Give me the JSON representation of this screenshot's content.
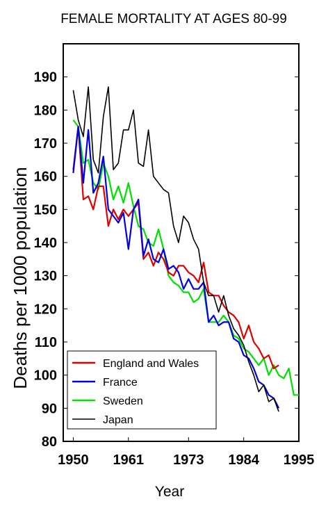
{
  "chart_data": {
    "type": "line",
    "title": "FEMALE MORTALITY AT AGES 80-99",
    "xlabel": "Year",
    "ylabel": "Deaths per 1000 population",
    "xlim": [
      1948,
      1995
    ],
    "ylim": [
      80,
      200
    ],
    "x_ticks": [
      1950,
      1961,
      1973,
      1984,
      1995
    ],
    "y_ticks": [
      80,
      90,
      100,
      110,
      120,
      130,
      140,
      150,
      160,
      170,
      180,
      190
    ],
    "grid": false,
    "legend_position": "bottom-left",
    "series": [
      {
        "name": "England and Wales",
        "color": "#e00000",
        "x": [
          1950,
          1951,
          1952,
          1953,
          1954,
          1955,
          1956,
          1957,
          1958,
          1959,
          1960,
          1961,
          1962,
          1963,
          1964,
          1965,
          1966,
          1967,
          1968,
          1969,
          1970,
          1971,
          1972,
          1973,
          1974,
          1975,
          1976,
          1977,
          1978,
          1979,
          1980,
          1981,
          1982,
          1983,
          1984,
          1985,
          1986,
          1987,
          1988,
          1989,
          1990,
          1991
        ],
        "y": [
          162,
          175,
          153,
          154,
          150,
          157,
          157,
          145,
          150,
          147,
          150,
          148,
          150,
          152,
          135,
          137,
          133,
          137,
          135,
          131,
          130,
          133,
          133,
          131,
          130,
          128,
          134,
          125,
          124,
          124,
          121,
          119,
          118,
          116,
          111,
          115,
          110,
          108,
          105,
          106,
          102,
          103
        ]
      },
      {
        "name": "France",
        "color": "#0000e0",
        "x": [
          1950,
          1951,
          1952,
          1953,
          1954,
          1955,
          1956,
          1957,
          1958,
          1959,
          1960,
          1961,
          1962,
          1963,
          1964,
          1965,
          1966,
          1967,
          1968,
          1969,
          1970,
          1971,
          1972,
          1973,
          1974,
          1975,
          1976,
          1977,
          1978,
          1979,
          1980,
          1981,
          1982,
          1983,
          1984,
          1985,
          1986,
          1987,
          1988,
          1989,
          1990,
          1991
        ],
        "y": [
          161,
          175,
          158,
          174,
          155,
          158,
          166,
          150,
          148,
          146,
          149,
          138,
          150,
          153,
          136,
          141,
          135,
          134,
          138,
          132,
          133,
          131,
          126,
          129,
          126,
          126,
          128,
          116,
          118,
          115,
          116,
          116,
          111,
          110,
          106,
          105,
          102,
          98,
          97,
          94,
          93,
          90
        ]
      },
      {
        "name": "Sweden",
        "color": "#00e000",
        "x": [
          1950,
          1951,
          1952,
          1953,
          1954,
          1955,
          1956,
          1957,
          1958,
          1959,
          1960,
          1961,
          1962,
          1963,
          1964,
          1965,
          1966,
          1967,
          1968,
          1969,
          1970,
          1971,
          1972,
          1973,
          1974,
          1975,
          1976,
          1977,
          1978,
          1979,
          1980,
          1981,
          1982,
          1983,
          1984,
          1985,
          1986,
          1987,
          1988,
          1989,
          1990,
          1991,
          1992,
          1993,
          1994,
          1995
        ],
        "y": [
          177,
          175,
          164,
          165,
          158,
          156,
          164,
          160,
          153,
          157,
          152,
          158,
          151,
          145,
          144,
          140,
          139,
          144,
          138,
          130,
          128,
          127,
          125,
          125,
          122,
          123,
          126,
          116,
          116,
          116,
          118,
          116,
          112,
          111,
          108,
          107,
          105,
          103,
          105,
          100,
          103,
          100,
          99,
          102,
          94,
          94
        ]
      },
      {
        "name": "Japan",
        "color": "#000000",
        "x": [
          1950,
          1951,
          1952,
          1953,
          1954,
          1955,
          1956,
          1957,
          1958,
          1959,
          1960,
          1961,
          1962,
          1963,
          1964,
          1965,
          1966,
          1967,
          1968,
          1969,
          1970,
          1971,
          1972,
          1973,
          1974,
          1975,
          1976,
          1977,
          1978,
          1979,
          1980,
          1981,
          1982,
          1983,
          1984,
          1985,
          1986,
          1987,
          1988,
          1989,
          1990,
          1991
        ],
        "y": [
          186,
          177,
          172,
          187,
          165,
          161,
          178,
          187,
          162,
          164,
          174,
          174,
          180,
          164,
          163,
          174,
          160,
          158,
          156,
          155,
          145,
          140,
          148,
          146,
          141,
          138,
          128,
          124,
          124,
          119,
          124,
          118,
          114,
          112,
          109,
          104,
          100,
          95,
          97,
          92,
          93,
          89
        ]
      }
    ]
  }
}
